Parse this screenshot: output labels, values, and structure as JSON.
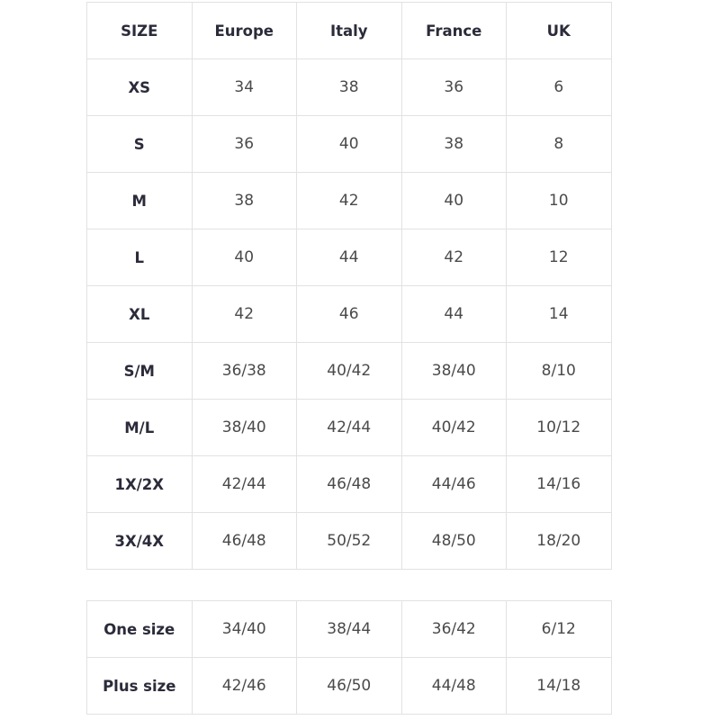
{
  "header": [
    "SIZE",
    "Europe",
    "Italy",
    "France",
    "UK"
  ],
  "rows": [
    [
      "XS",
      "34",
      "38",
      "36",
      "6"
    ],
    [
      "S",
      "36",
      "40",
      "38",
      "8"
    ],
    [
      "M",
      "38",
      "42",
      "40",
      "10"
    ],
    [
      "L",
      "40",
      "44",
      "42",
      "12"
    ],
    [
      "XL",
      "42",
      "46",
      "44",
      "14"
    ],
    [
      "S/M",
      "36/38",
      "40/42",
      "38/40",
      "8/10"
    ],
    [
      "M/L",
      "38/40",
      "42/44",
      "40/42",
      "10/12"
    ],
    [
      "1X/2X",
      "42/44",
      "46/48",
      "44/46",
      "14/16"
    ],
    [
      "3X/4X",
      "46/48",
      "50/52",
      "48/50",
      "18/20"
    ]
  ],
  "extra_rows": [
    [
      "One size",
      "34/40",
      "38/44",
      "36/42",
      "6/12"
    ],
    [
      "Plus size",
      "42/46",
      "46/50",
      "44/48",
      "14/18"
    ]
  ]
}
